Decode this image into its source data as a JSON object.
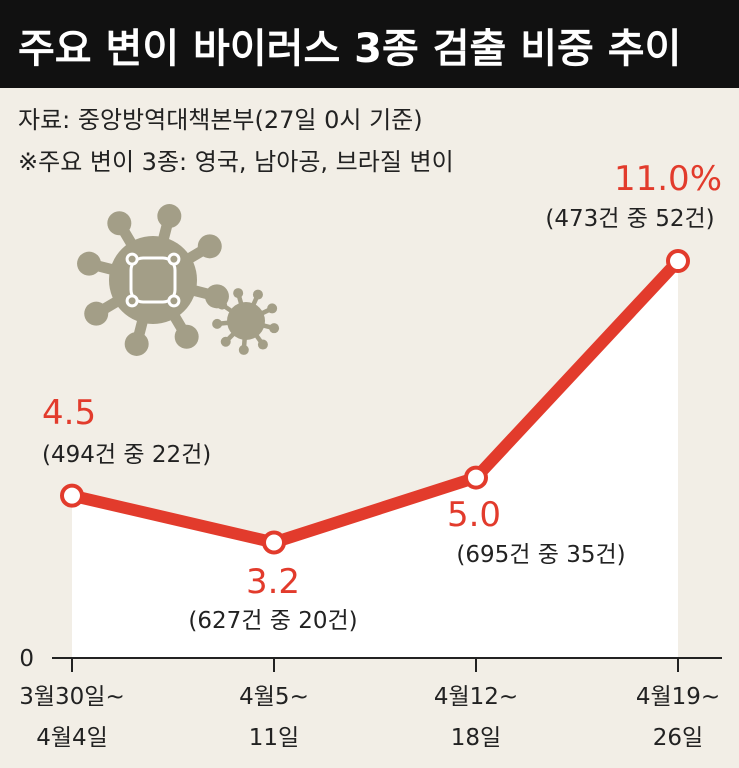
{
  "header": {
    "title": "주요 변이 바이러스 3종 검출 비중 추이",
    "source": "자료: 중앙방역대책본부(27일 0시 기준)",
    "note": "※주요 변이 3종: 영국, 남아공, 브라질 변이"
  },
  "colors": {
    "title_bg": "#111111",
    "background": "#f2eee6",
    "line": "#e23b2c",
    "area": "#ffffff",
    "virus": "#a39e87"
  },
  "illustration": {
    "icon": "virus-icon"
  },
  "chart_data": {
    "type": "line",
    "title": "주요 변이 바이러스 3종 검출 비중 추이",
    "categories": [
      [
        "3월30일~",
        "4월4일"
      ],
      [
        "4월5~",
        "11일"
      ],
      [
        "4월12~",
        "18일"
      ],
      [
        "4월19~",
        "26일"
      ]
    ],
    "values": [
      4.5,
      3.2,
      5.0,
      11.0
    ],
    "value_labels": [
      "4.5",
      "3.2",
      "5.0",
      "11.0%"
    ],
    "count_labels": [
      "(494건 중 22건)",
      "(627건 중 20건)",
      "(695건 중 35건)",
      "(473건 중 52건)"
    ],
    "y_tick_label": "0",
    "ylim": [
      0,
      11.5
    ],
    "grid": false,
    "legend": "none",
    "area_fill": true
  }
}
